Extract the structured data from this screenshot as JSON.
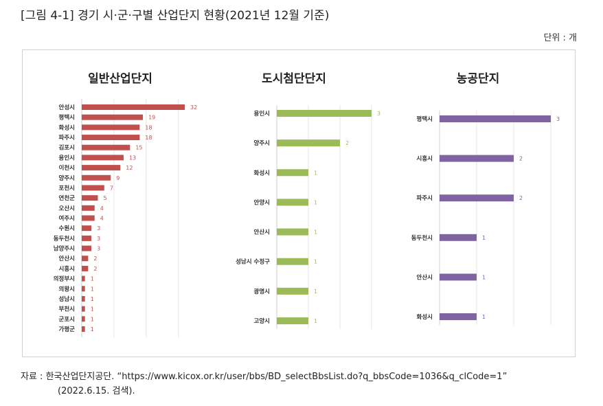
{
  "figure_title": "[그림 4-1] 경기 시·군·구별 산업단지 현황(2021년 12월 기준)",
  "unit": "단위 : 개",
  "source_line1": "자료 : 한국산업단지공단. “https://www.kicox.or.kr/user/bbs/BD_selectBbsList.do?q_bbsCode=1036&q_clCode=1”",
  "source_line2": "(2022.6.15. 검색).",
  "chart_data": [
    {
      "type": "bar",
      "orientation": "horizontal",
      "title": "일반산업단지",
      "color": "#c0504d",
      "categories": [
        "안성시",
        "평택시",
        "화성시",
        "파주시",
        "김포시",
        "용인시",
        "이천시",
        "양주시",
        "포천시",
        "연천군",
        "오산시",
        "여주시",
        "수원시",
        "동두천시",
        "남양주시",
        "안산시",
        "시흥시",
        "의정부시",
        "의왕시",
        "성남시",
        "부천시",
        "군포시",
        "가평군"
      ],
      "values": [
        32,
        19,
        18,
        18,
        15,
        13,
        12,
        9,
        7,
        5,
        4,
        4,
        3,
        3,
        3,
        2,
        2,
        1,
        1,
        1,
        1,
        1,
        1
      ]
    },
    {
      "type": "bar",
      "orientation": "horizontal",
      "title": "도시첨단단지",
      "color": "#9bbb59",
      "categories": [
        "용인시",
        "양주시",
        "화성시",
        "안양시",
        "안산시",
        "성남시 수정구",
        "광명시",
        "고양시"
      ],
      "values": [
        3,
        2,
        1,
        1,
        1,
        1,
        1,
        1
      ]
    },
    {
      "type": "bar",
      "orientation": "horizontal",
      "title": "농공단지",
      "color": "#8064a2",
      "categories": [
        "평택시",
        "시흥시",
        "파주시",
        "동두천시",
        "안산시",
        "화성시"
      ],
      "values": [
        3,
        2,
        2,
        1,
        1,
        1
      ]
    }
  ]
}
